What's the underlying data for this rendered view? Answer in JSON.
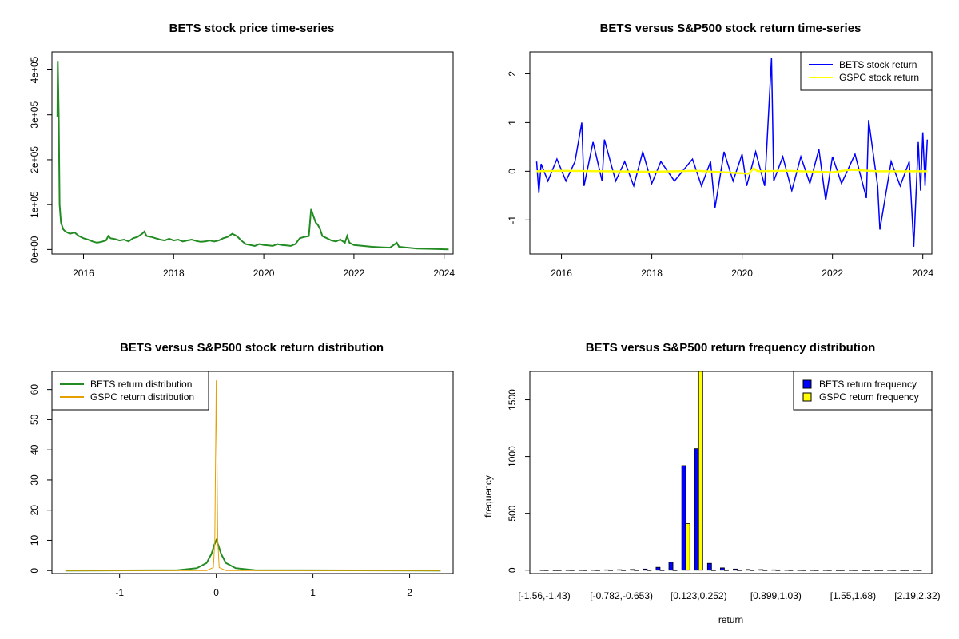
{
  "chart_data": [
    {
      "type": "line",
      "title": "BETS stock price time-series",
      "xlabel": "",
      "ylabel": "",
      "x_ticks": [
        "2016",
        "2018",
        "2020",
        "2022",
        "2024"
      ],
      "x_range": [
        2015.3,
        2024.2
      ],
      "y_ticks": [
        "0e+00",
        "1e+05",
        "2e+05",
        "3e+05",
        "4e+05"
      ],
      "ylim": [
        -10000,
        440000
      ],
      "series": [
        {
          "color": "#228B22",
          "x": [
            2015.42,
            2015.43,
            2015.45,
            2015.47,
            2015.5,
            2015.55,
            2015.6,
            2015.7,
            2015.8,
            2015.9,
            2016.0,
            2016.1,
            2016.2,
            2016.3,
            2016.4,
            2016.5,
            2016.55,
            2016.6,
            2016.7,
            2016.8,
            2016.9,
            2017.0,
            2017.1,
            2017.2,
            2017.3,
            2017.35,
            2017.4,
            2017.5,
            2017.6,
            2017.7,
            2017.8,
            2017.9,
            2018.0,
            2018.1,
            2018.2,
            2018.3,
            2018.4,
            2018.5,
            2018.6,
            2018.7,
            2018.8,
            2018.9,
            2019.0,
            2019.1,
            2019.2,
            2019.3,
            2019.4,
            2019.5,
            2019.6,
            2019.7,
            2019.8,
            2019.9,
            2020.0,
            2020.1,
            2020.2,
            2020.3,
            2020.4,
            2020.5,
            2020.6,
            2020.7,
            2020.8,
            2020.9,
            2021.0,
            2021.05,
            2021.1,
            2021.15,
            2021.2,
            2021.25,
            2021.3,
            2021.4,
            2021.5,
            2021.6,
            2021.7,
            2021.8,
            2021.85,
            2021.9,
            2022.0,
            2022.2,
            2022.4,
            2022.6,
            2022.8,
            2022.95,
            2023.0,
            2023.2,
            2023.4,
            2023.6,
            2023.8,
            2024.0,
            2024.1
          ],
          "y": [
            295000,
            420000,
            300000,
            100000,
            60000,
            45000,
            40000,
            35000,
            38000,
            30000,
            25000,
            22000,
            18000,
            15000,
            17000,
            20000,
            30000,
            25000,
            23000,
            20000,
            22000,
            18000,
            25000,
            28000,
            35000,
            40000,
            30000,
            28000,
            25000,
            22000,
            20000,
            24000,
            20000,
            22000,
            18000,
            20000,
            22000,
            19000,
            17000,
            18000,
            20000,
            18000,
            20000,
            25000,
            28000,
            35000,
            30000,
            20000,
            12000,
            10000,
            8000,
            12000,
            10000,
            9000,
            8000,
            12000,
            10000,
            9000,
            8000,
            12000,
            25000,
            28000,
            30000,
            90000,
            75000,
            60000,
            55000,
            45000,
            30000,
            25000,
            20000,
            18000,
            22000,
            15000,
            30000,
            15000,
            10000,
            8000,
            6000,
            5000,
            4000,
            15000,
            6000,
            4000,
            2000,
            1500,
            1000,
            500,
            300
          ]
        }
      ],
      "grid": false,
      "legend": "none"
    },
    {
      "type": "line",
      "title": "BETS versus S&P500 stock return time-series",
      "xlabel": "",
      "ylabel": "",
      "x_ticks": [
        "2016",
        "2018",
        "2020",
        "2022",
        "2024"
      ],
      "x_range": [
        2015.3,
        2024.2
      ],
      "y_ticks": [
        "-1",
        "0",
        "1",
        "2"
      ],
      "ylim": [
        -1.7,
        2.45
      ],
      "legend_position": "top-right",
      "series": [
        {
          "name": "BETS stock return",
          "color": "#0000FF",
          "x": [
            2015.45,
            2015.5,
            2015.55,
            2015.7,
            2015.9,
            2016.1,
            2016.3,
            2016.45,
            2016.5,
            2016.7,
            2016.9,
            2016.95,
            2017.2,
            2017.4,
            2017.6,
            2017.8,
            2018.0,
            2018.2,
            2018.5,
            2018.9,
            2019.1,
            2019.3,
            2019.4,
            2019.6,
            2019.8,
            2020.0,
            2020.1,
            2020.3,
            2020.5,
            2020.65,
            2020.7,
            2020.9,
            2021.1,
            2021.3,
            2021.5,
            2021.7,
            2021.85,
            2022.0,
            2022.2,
            2022.5,
            2022.75,
            2022.8,
            2023.0,
            2023.05,
            2023.3,
            2023.5,
            2023.7,
            2023.8,
            2023.9,
            2023.95,
            2024.0,
            2024.05,
            2024.1
          ],
          "y": [
            0.2,
            -0.45,
            0.15,
            -0.2,
            0.25,
            -0.2,
            0.2,
            1.0,
            -0.3,
            0.6,
            -0.2,
            0.65,
            -0.2,
            0.2,
            -0.3,
            0.4,
            -0.25,
            0.2,
            -0.2,
            0.25,
            -0.3,
            0.2,
            -0.75,
            0.4,
            -0.2,
            0.35,
            -0.3,
            0.4,
            -0.3,
            2.32,
            -0.2,
            0.3,
            -0.4,
            0.3,
            -0.25,
            0.45,
            -0.6,
            0.3,
            -0.25,
            0.35,
            -0.55,
            1.05,
            -0.3,
            -1.2,
            0.2,
            -0.3,
            0.2,
            -1.55,
            0.6,
            -0.4,
            0.8,
            -0.3,
            0.65
          ]
        },
        {
          "name": "GSPC stock return",
          "color": "#FFFF00",
          "x": [
            2015.45,
            2016.0,
            2017.0,
            2018.0,
            2019.0,
            2020.15,
            2020.25,
            2020.35,
            2021.0,
            2022.0,
            2022.4,
            2023.0,
            2024.1
          ],
          "y": [
            0.0,
            0.01,
            0.0,
            -0.01,
            0.01,
            -0.05,
            0.06,
            0.0,
            0.01,
            -0.02,
            0.03,
            0.0,
            0.0
          ]
        }
      ],
      "grid": false
    },
    {
      "type": "line",
      "title": "BETS versus S&P500 stock return distribution",
      "xlabel": "",
      "ylabel": "",
      "x_ticks": [
        "-1",
        "0",
        "1",
        "2"
      ],
      "x_range": [
        -1.7,
        2.45
      ],
      "y_ticks": [
        "0",
        "10",
        "20",
        "30",
        "40",
        "50",
        "60"
      ],
      "ylim": [
        -1,
        66
      ],
      "legend_position": "top-left",
      "series": [
        {
          "name": "BETS return distribution",
          "color": "#228B22",
          "x": [
            -1.56,
            -0.4,
            -0.2,
            -0.1,
            -0.05,
            -0.02,
            0.0,
            0.02,
            0.05,
            0.1,
            0.2,
            0.4,
            2.32
          ],
          "y": [
            0.0,
            0.1,
            0.8,
            2.5,
            5.5,
            8.5,
            10.0,
            8.5,
            5.5,
            2.5,
            0.8,
            0.1,
            0.0
          ]
        },
        {
          "name": "GSPC return distribution",
          "color": "#E69F00",
          "x": [
            -1.56,
            -0.1,
            -0.03,
            -0.015,
            -0.005,
            0.0,
            0.005,
            0.015,
            0.03,
            0.1,
            2.32
          ],
          "y": [
            0.0,
            0.0,
            1.0,
            10.0,
            45.0,
            63.0,
            45.0,
            10.0,
            1.0,
            0.0,
            0.0
          ]
        }
      ],
      "grid": false
    },
    {
      "type": "bar",
      "title": "BETS versus S&P500 return frequency distribution",
      "xlabel": "return",
      "ylabel": "frequency",
      "categories": [
        "[-1.56,-1.43)",
        "[-1.43,-1.3)",
        "[-1.3,-1.17)",
        "[-1.17,-1.04)",
        "[-1.04,-0.911)",
        "[-0.911,-0.782)",
        "[-0.782,-0.653)",
        "[-0.653,-0.524)",
        "[-0.524,-0.395)",
        "[-0.395,-0.266)",
        "[-0.266,-0.137)",
        "[-0.137,-0.00644)",
        "[-0.00644,0.123)",
        "[0.123,0.252)",
        "[0.252,0.382)",
        "[0.382,0.511)",
        "[0.511,0.64)",
        "[0.64,0.769)",
        "[0.769,0.899)",
        "[0.899,1.03)",
        "[1.03,1.16)",
        "[1.16,1.29)",
        "[1.29,1.42)",
        "[1.42,1.55)",
        "[1.55,1.68)",
        "[1.68,1.81)",
        "[1.81,1.94)",
        "[1.94,2.06)",
        "[2.06,2.19)",
        "[2.19,2.32]"
      ],
      "x_tick_labels": [
        "[-1.56,-1.43)",
        "[-0.782,-0.653)",
        "[0.123,0.252)",
        "[0.899,1.03)",
        "[1.55,1.68)",
        "[2.19,2.32)"
      ],
      "series": [
        {
          "name": "BETS return frequency",
          "color": "#0000FF",
          "values": [
            1,
            0,
            1,
            1,
            2,
            3,
            4,
            6,
            10,
            25,
            70,
            920,
            1070,
            60,
            20,
            10,
            6,
            5,
            3,
            2,
            1,
            1,
            1,
            0,
            1,
            0,
            0,
            1,
            0,
            1
          ]
        },
        {
          "name": "GSPC return frequency",
          "color": "#FFFF00",
          "values": [
            0,
            0,
            0,
            0,
            0,
            0,
            0,
            0,
            0,
            0,
            0,
            410,
            1790,
            0,
            0,
            0,
            0,
            0,
            0,
            0,
            0,
            0,
            0,
            0,
            0,
            0,
            0,
            0,
            0,
            0
          ]
        }
      ],
      "y_ticks": [
        "0",
        "500",
        "1000",
        "1500"
      ],
      "ylim": [
        -30,
        1750
      ],
      "legend_position": "top-right",
      "grid": false
    }
  ]
}
